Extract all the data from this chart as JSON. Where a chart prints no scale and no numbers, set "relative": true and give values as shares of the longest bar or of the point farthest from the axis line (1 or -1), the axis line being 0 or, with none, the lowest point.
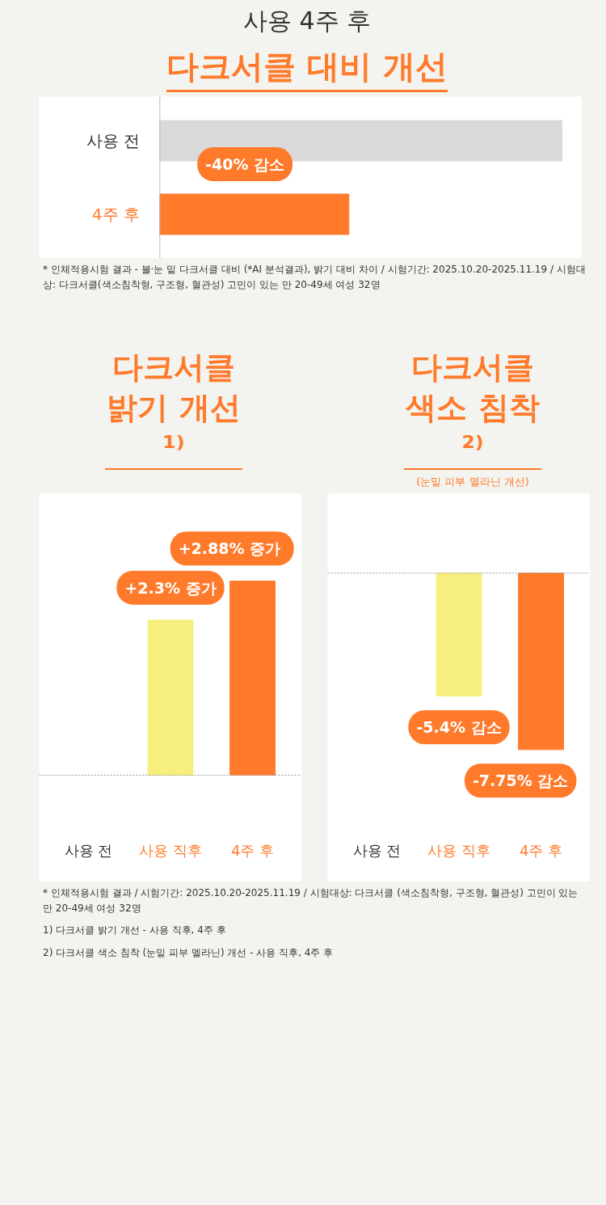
{
  "chart_data": [
    {
      "type": "bar",
      "orientation": "horizontal",
      "relative": true,
      "title": "사용 4주 후",
      "subtitle": "다크서클 대비 개선",
      "categories": [
        "사용 전",
        "4주 후"
      ],
      "values": [
        1,
        0.47
      ],
      "colors": [
        "#d9d9d9",
        "#ff7a2a"
      ],
      "annotations": [
        "-40% 감소",
        "* 인체적용시험 결과 - 볼·눈 밑 다크서클 대비 (*AI 분석결과), 밝기 대비 차이 / 시험기간: 2025.10.20-2025.11.19 / 시험대상: 다크서클(색소침착형, 구조형, 혈관성) 고민이 있는 만 20-49세 여성 32명"
      ]
    },
    {
      "type": "bar",
      "title": "다크서클 밝기 개선¹⁾",
      "categories": [
        "사용 전",
        "사용 직후",
        "4주 후"
      ],
      "values": [
        null,
        2.3,
        2.88
      ],
      "colors": [
        "#e2e2e2",
        "#f6ef7e",
        "#ff7a2a"
      ],
      "value_labels": [
        null,
        "+2.3% 증가",
        "+2.88%  증가"
      ]
    },
    {
      "type": "bar",
      "title": "다크서클 색소 침착²⁾",
      "subtitle": "(눈밑 피부 멜라닌 개선)",
      "categories": [
        "사용 전",
        "사용 직후",
        "4주 후"
      ],
      "values": [
        null,
        -5.4,
        -7.75
      ],
      "colors": [
        "#e2e2e2",
        "#f6ef7e",
        "#ff7a2a"
      ],
      "value_labels": [
        null,
        "-5.4% 감소",
        "-7.75% 감소"
      ],
      "annotations": [
        "* 인체적용시험 결과 / 시험기간: 2025.10.20-2025.11.19 / 시험대상: 다크서클 (색소침착형, 구조형, 혈관성) 고민이 있는 만 20-49세 여성 32명",
        "1) 다크서클 밝기 개선 - 사용 직후, 4주 후",
        "2) 다크서클 색소 침착 (눈밑 피부 멜라닌) 개선 - 사용 직후, 4주 후"
      ]
    }
  ]
}
